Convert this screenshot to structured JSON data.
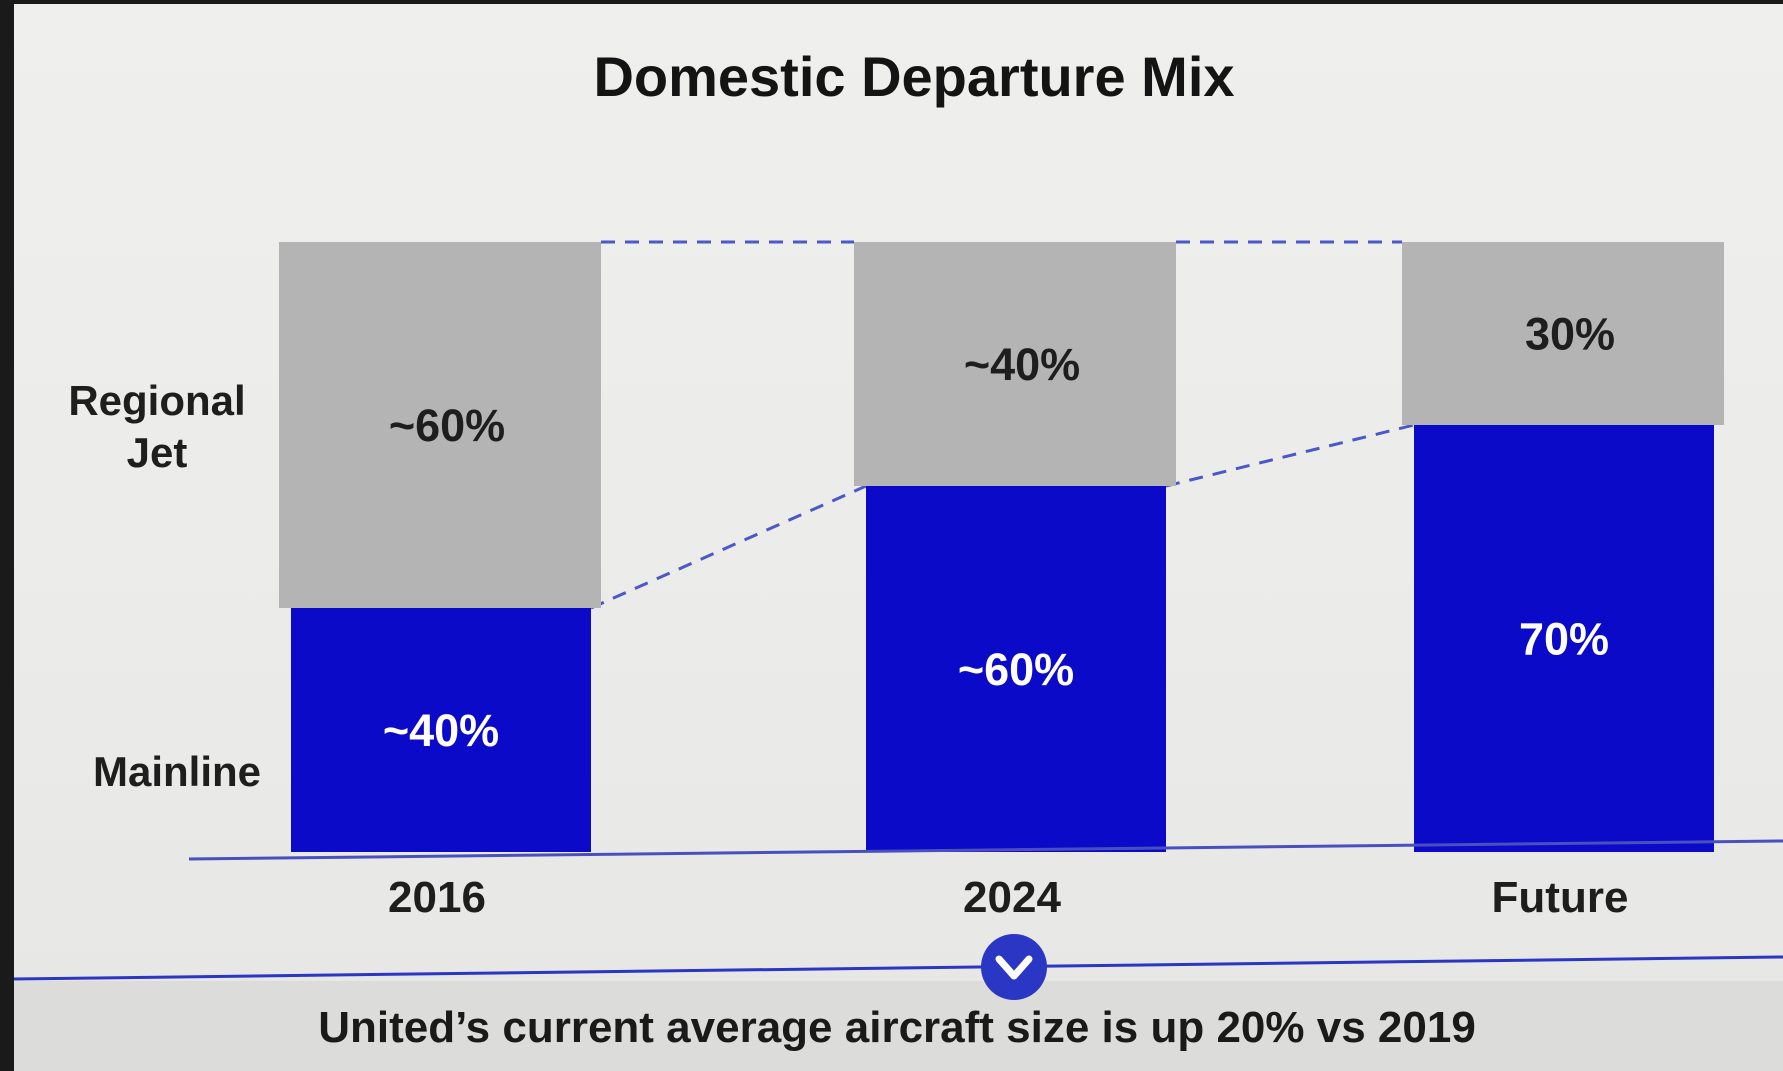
{
  "chart_data": {
    "type": "bar",
    "stacked": true,
    "title": "Domestic Departure Mix",
    "categories": [
      "2016",
      "2024",
      "Future"
    ],
    "series": [
      {
        "name": "Mainline",
        "values": [
          40,
          60,
          70
        ],
        "labels": [
          "~40%",
          "~60%",
          "70%"
        ],
        "color": "#0a0ac8"
      },
      {
        "name": "Regional Jet",
        "values": [
          60,
          40,
          30
        ],
        "labels": [
          "~60%",
          "~40%",
          "30%"
        ],
        "color": "#b4b4b4"
      }
    ],
    "ylim": [
      0,
      100
    ],
    "series_labels_position": "left",
    "connector_lines": "dashed",
    "connector_color": "#4a58c8",
    "grid": false
  },
  "footer": {
    "text": "United’s current average aircraft size is up 20% vs 2019",
    "icon": "chevron-down-icon",
    "accent_color": "#2a36c4"
  }
}
